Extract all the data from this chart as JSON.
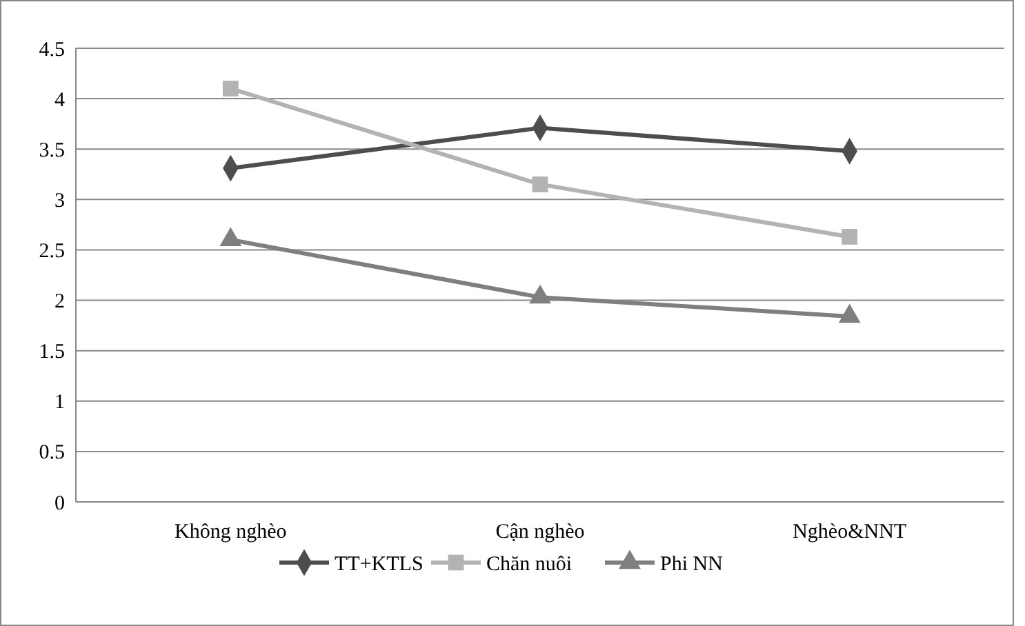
{
  "chart_data": {
    "type": "line",
    "categories": [
      "Không nghèo",
      "Cận nghèo",
      "Nghèo&NNT"
    ],
    "series": [
      {
        "name": "TT+KTLS",
        "color": "#4d4d4d",
        "marker": "diamond",
        "values": [
          3.31,
          3.71,
          3.48
        ]
      },
      {
        "name": "Chăn nuôi",
        "color": "#b3b3b3",
        "marker": "square",
        "values": [
          4.1,
          3.15,
          2.63
        ]
      },
      {
        "name": "Phi NN",
        "color": "#7f7f7f",
        "marker": "triangle",
        "values": [
          2.6,
          2.03,
          1.84
        ]
      }
    ],
    "ylim": [
      0,
      4.5
    ],
    "yticks": [
      0,
      0.5,
      1,
      1.5,
      2,
      2.5,
      3,
      3.5,
      4,
      4.5
    ],
    "grid": "y",
    "legend": "bottom",
    "line_style": "solid"
  }
}
